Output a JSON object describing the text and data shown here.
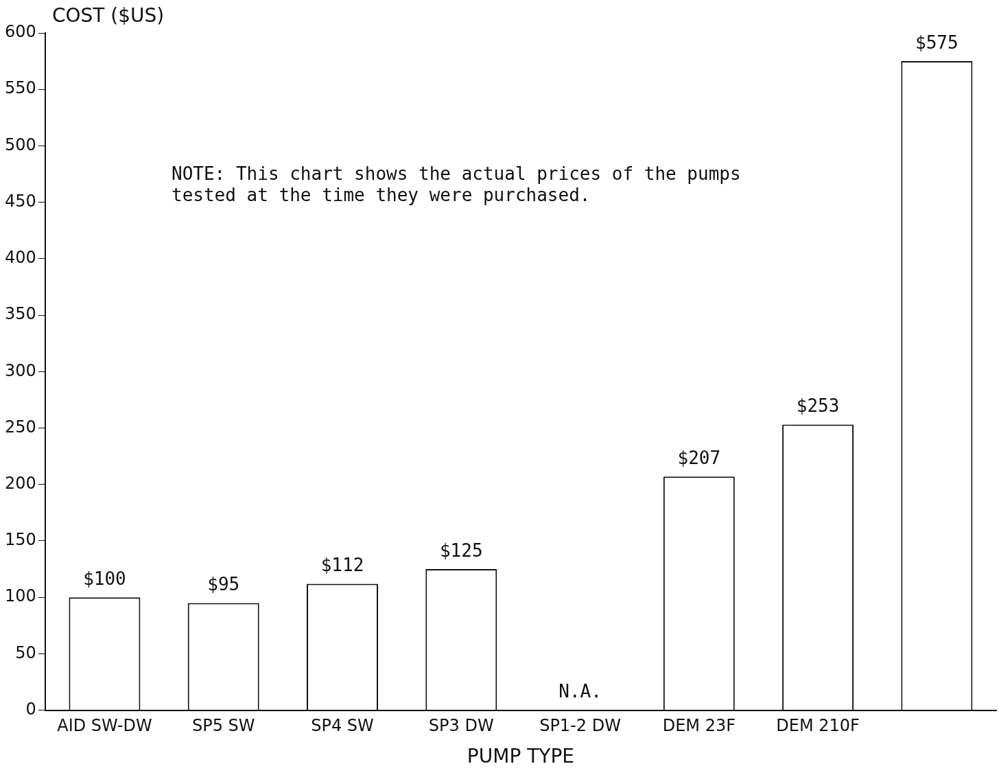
{
  "chart_data": {
    "type": "bar",
    "ylabel": "COST ($US)",
    "xlabel": "PUMP TYPE",
    "categories": [
      "AID SW-DW",
      "SP5 SW",
      "SP4 SW",
      "SP3 DW",
      "SP1-2 DW",
      "DEM 23F",
      "DEM 210F",
      null
    ],
    "values": [
      100,
      95,
      112,
      125,
      null,
      207,
      253,
      575
    ],
    "value_labels": [
      "$100",
      "$95",
      "$112",
      "$125",
      "N.A.",
      "$207",
      "$253",
      "$575"
    ],
    "color": "#ffffff",
    "ylim": [
      0,
      600
    ],
    "yticks": [
      0,
      50,
      100,
      150,
      200,
      250,
      300,
      350,
      400,
      450,
      500,
      550,
      600
    ],
    "grid": false,
    "legend": false,
    "annotations": [
      "NOTE: This chart shows the actual prices of the pumps tested at the time they were purchased."
    ]
  }
}
